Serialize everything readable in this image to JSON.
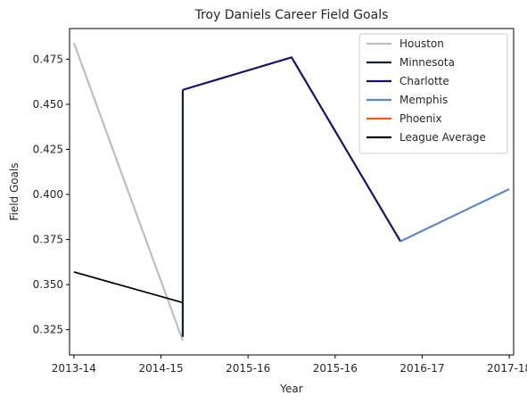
{
  "chart_data": {
    "type": "line",
    "title": "Troy Daniels Career Field Goals",
    "xlabel": "Year",
    "ylabel": "Field Goals",
    "x_tick_labels": [
      "2013-14",
      "2014-15",
      "2015-16",
      "2015-16",
      "2016-17",
      "2017-18"
    ],
    "xlim": [
      -0.05,
      5.05
    ],
    "ylim": [
      0.311,
      0.492
    ],
    "y_ticks": [
      0.325,
      0.35,
      0.375,
      0.4,
      0.425,
      0.45,
      0.475
    ],
    "y_tick_labels": [
      "0.325",
      "0.350",
      "0.375",
      "0.400",
      "0.425",
      "0.450",
      "0.475"
    ],
    "grid": false,
    "legend_position": "top-right",
    "series": [
      {
        "name": "Houston",
        "color": "#bebebe",
        "points": [
          [
            0,
            0.484
          ],
          [
            1.25,
            0.319
          ]
        ]
      },
      {
        "name": "Minnesota",
        "color": "#0c2430",
        "points": [
          [
            1.25,
            0.321
          ],
          [
            1.25,
            0.458
          ]
        ]
      },
      {
        "name": "Charlotte",
        "color": "#1d1160",
        "points": [
          [
            1.25,
            0.458
          ],
          [
            2.5,
            0.476
          ],
          [
            3.75,
            0.374
          ]
        ]
      },
      {
        "name": "Memphis",
        "color": "#6189b9",
        "points": [
          [
            3.75,
            0.374
          ],
          [
            5,
            0.403
          ]
        ]
      },
      {
        "name": "Phoenix",
        "color": "#e56020",
        "points": []
      },
      {
        "name": "League Average",
        "color": "#000000",
        "points": [
          [
            0,
            0.357
          ],
          [
            1.25,
            0.34
          ]
        ]
      }
    ]
  }
}
